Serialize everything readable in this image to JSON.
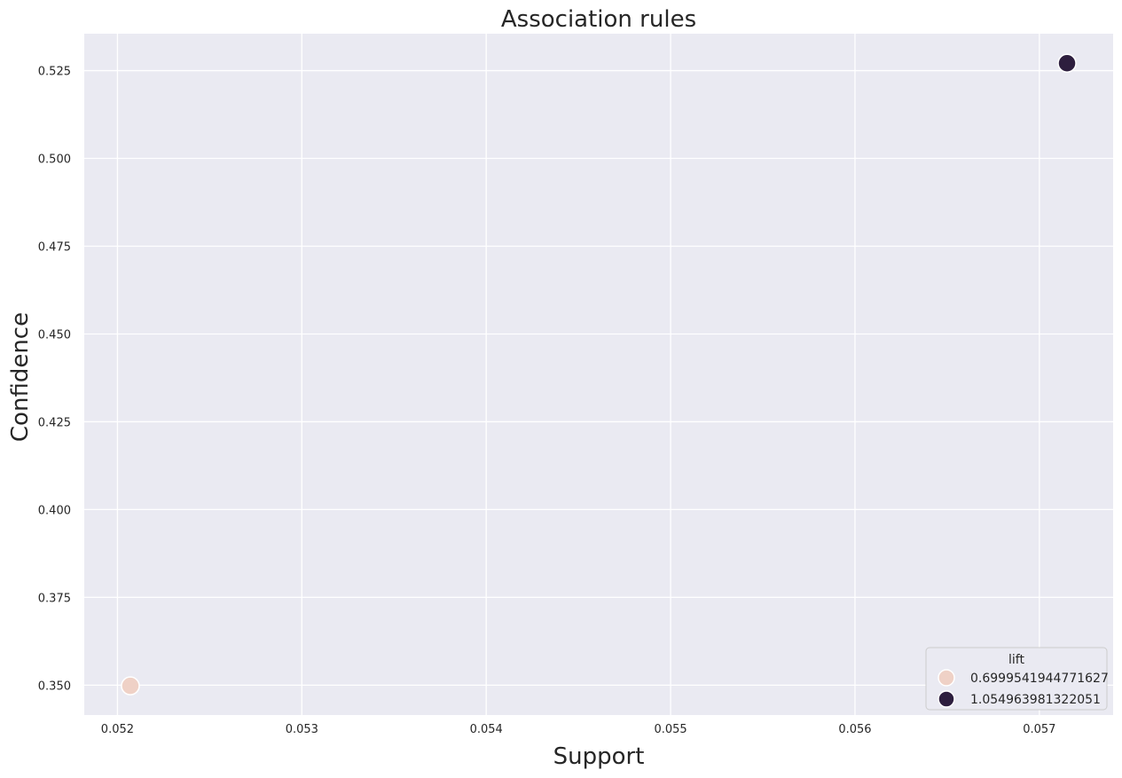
{
  "chart_data": {
    "type": "scatter",
    "title": "Association rules",
    "xlabel": "Support",
    "ylabel": "Confidence",
    "xlim": [
      0.05182,
      0.0574
    ],
    "ylim": [
      0.3415,
      0.5355
    ],
    "x_ticks": [
      0.052,
      0.053,
      0.054,
      0.055,
      0.056,
      0.057
    ],
    "x_tick_labels": [
      "0.052",
      "0.053",
      "0.054",
      "0.055",
      "0.056",
      "0.057"
    ],
    "y_ticks": [
      0.35,
      0.375,
      0.4,
      0.425,
      0.45,
      0.475,
      0.5,
      0.525
    ],
    "y_tick_labels": [
      "0.350",
      "0.375",
      "0.400",
      "0.425",
      "0.450",
      "0.475",
      "0.500",
      "0.525"
    ],
    "grid": true,
    "legend": {
      "title": "lift",
      "placement": "bottom-right",
      "entries": [
        {
          "label": "0.6999541944771627",
          "color": "#efd1c6"
        },
        {
          "label": "1.054963981322051",
          "color": "#2d1e3e"
        }
      ]
    },
    "points": [
      {
        "x": 0.05207,
        "y": 0.3498,
        "lift": "0.6999541944771627",
        "color": "#efd1c6"
      },
      {
        "x": 0.05715,
        "y": 0.5271,
        "lift": "1.054963981322051",
        "color": "#2d1e3e"
      }
    ],
    "colors": {
      "plot_background": "#eaeaf2",
      "grid": "#ffffff"
    }
  }
}
